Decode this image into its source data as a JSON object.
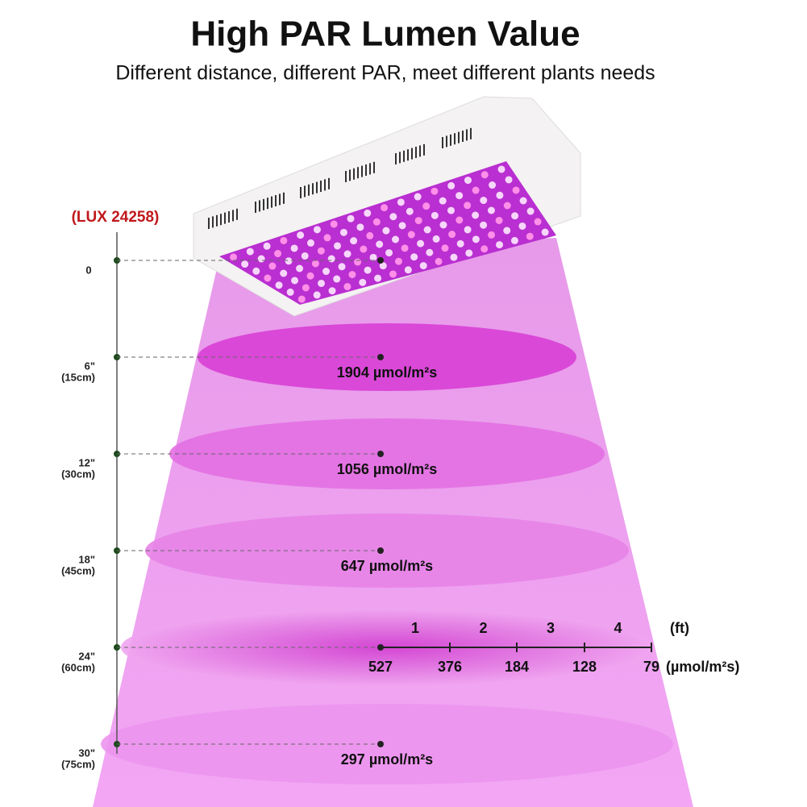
{
  "header": {
    "title": "High PAR Lumen Value",
    "subtitle": "Different distance, different PAR, meet different plants needs"
  },
  "lux_label": "(LUX 24258)",
  "levels": [
    {
      "distance": "0"
    },
    {
      "distance": "6\"",
      "metric": "(15cm)",
      "par": "1904 µmol/m²s"
    },
    {
      "distance": "12\"",
      "metric": "(30cm)",
      "par": "1056 µmol/m²s"
    },
    {
      "distance": "18\"",
      "metric": "(45cm)",
      "par": "647 µmol/m²s"
    },
    {
      "distance": "24\"",
      "metric": "(60cm)"
    },
    {
      "distance": "30\"",
      "metric": "(75cm)",
      "par": "297 µmol/m²s"
    }
  ],
  "spread": {
    "feet": [
      "1",
      "2",
      "3",
      "4"
    ],
    "feet_unit": "(ft)",
    "values": [
      "527",
      "376",
      "184",
      "128",
      "79"
    ],
    "values_unit": "(µmol/m²s)"
  }
}
